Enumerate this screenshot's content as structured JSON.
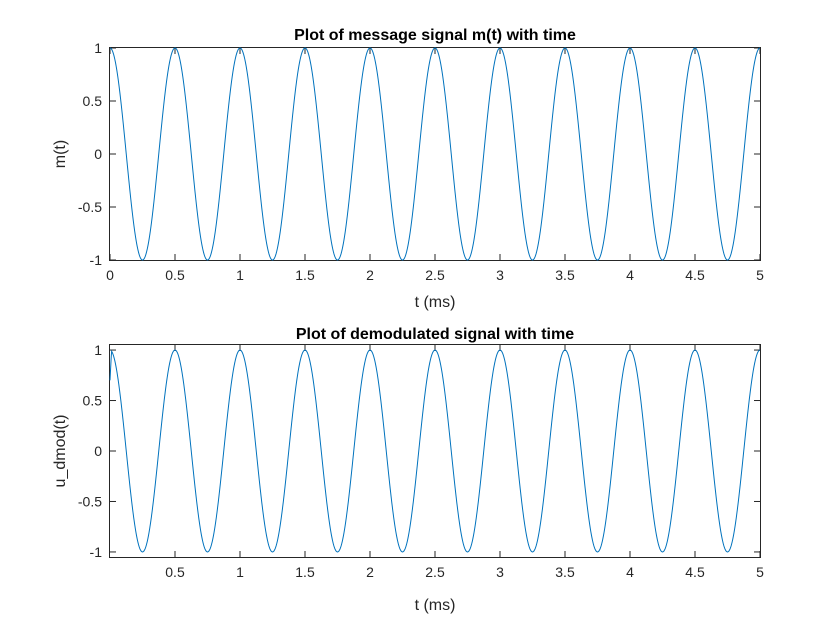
{
  "chart_data": [
    {
      "type": "line",
      "title": "Plot of message signal m(t) with time",
      "xlabel": "t (ms)",
      "ylabel": "m(t)",
      "xlim": [
        0,
        5
      ],
      "ylim": [
        -1,
        1
      ],
      "xticks": [
        0,
        0.5,
        1,
        1.5,
        2,
        2.5,
        3,
        3.5,
        4,
        4.5,
        5
      ],
      "xtick_labels": [
        "0",
        "0.5",
        "1",
        "1.5",
        "2",
        "2.5",
        "3",
        "3.5",
        "4",
        "4.5",
        "5"
      ],
      "yticks": [
        1,
        0.5,
        0,
        -0.5,
        -1
      ],
      "ytick_labels": [
        "1",
        "0.5",
        "0",
        "-0.5",
        "-1"
      ],
      "grid": false,
      "color": "#0072BD",
      "series": [
        {
          "function": "cos",
          "amplitude": 1,
          "frequency_khz": 2,
          "x_range": [
            0,
            5
          ]
        }
      ]
    },
    {
      "type": "line",
      "title": "Plot of demodulated signal with time",
      "xlabel": "t (ms)",
      "ylabel": "u_dmod(t)",
      "xlim": [
        0,
        5
      ],
      "ylim": [
        -1.05,
        1.05
      ],
      "xticks": [
        0.5,
        1,
        1.5,
        2,
        2.5,
        3,
        3.5,
        4,
        4.5,
        5
      ],
      "xtick_labels": [
        "0.5",
        "1",
        "1.5",
        "2",
        "2.5",
        "3",
        "3.5",
        "4",
        "4.5",
        "5"
      ],
      "yticks": [
        1,
        0.5,
        0,
        -0.5,
        -1
      ],
      "ytick_labels": [
        "1",
        "0.5",
        "0",
        "-0.5",
        "-1"
      ],
      "grid": false,
      "color": "#0072BD",
      "series": [
        {
          "function": "cos",
          "amplitude": 1,
          "frequency_khz": 2,
          "x_range": [
            0,
            5
          ],
          "start_value": 0.7
        }
      ]
    }
  ]
}
